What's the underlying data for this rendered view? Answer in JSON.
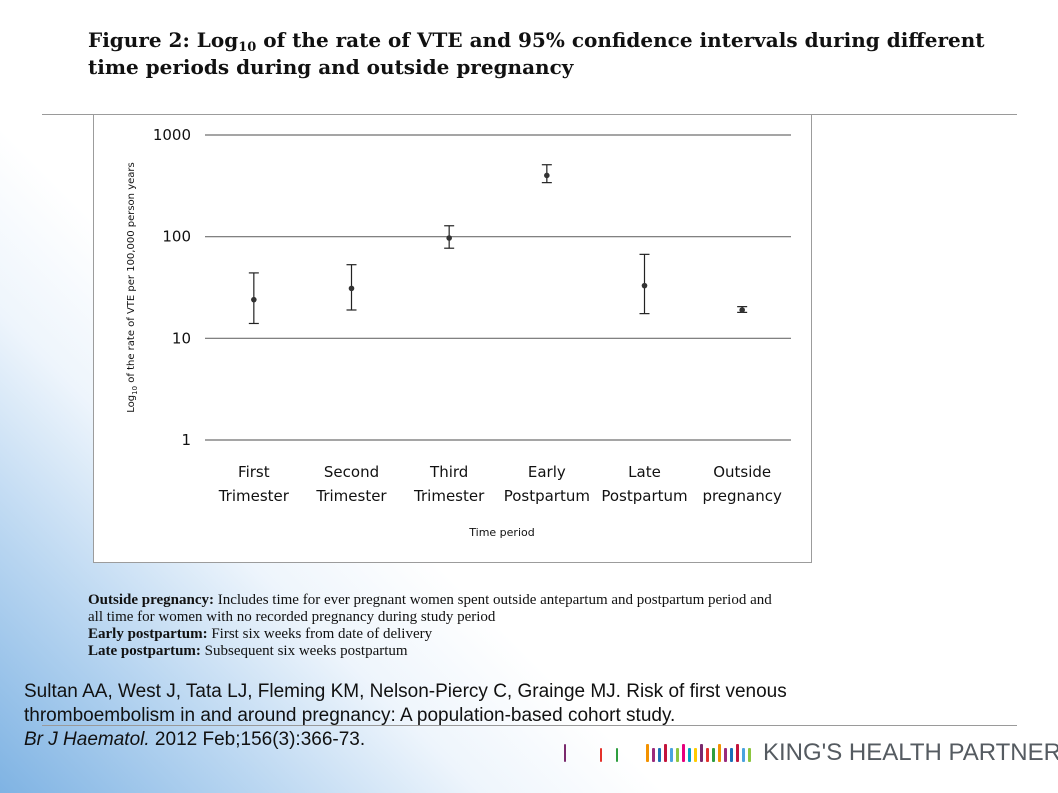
{
  "figure": {
    "title_prefix": "Figure 2: Log",
    "title_sub": "10",
    "title_rest": " of the rate of VTE and 95% confidence intervals during different",
    "title_line2": "time periods during and outside pregnancy"
  },
  "chart_data": {
    "type": "scatter",
    "error_bars": true,
    "y_scale": "log",
    "ylim": [
      1,
      1000
    ],
    "y_ticks": [
      "1",
      "10",
      "100",
      "1000"
    ],
    "y_tick_values": [
      1,
      10,
      100,
      1000
    ],
    "ylabel_prefix": "Log",
    "ylabel_sub": "10",
    "ylabel_rest": " of the rate of VTE per 100,000 person years",
    "xlabel": "Time period",
    "grid": true,
    "categories": [
      [
        "First",
        "Trimester"
      ],
      [
        "Second",
        "Trimester"
      ],
      [
        "Third",
        "Trimester"
      ],
      [
        "Early",
        "Postpartum"
      ],
      [
        "Late",
        "Postpartum"
      ],
      [
        "Outside",
        "pregnancy"
      ]
    ],
    "series": [
      {
        "values": [
          24,
          31,
          97,
          400,
          33,
          19
        ],
        "lower": [
          14,
          19,
          77,
          340,
          17.5,
          18
        ],
        "upper": [
          44,
          53,
          128,
          510,
          67,
          20.5
        ]
      }
    ]
  },
  "notes": [
    {
      "term": "Outside pregnancy:",
      "text": " Includes time for ever pregnant women spent outside antepartum and postpartum period and"
    },
    {
      "term": "",
      "text": "all time for women with no recorded pregnancy during study period"
    },
    {
      "term": "Early postpartum:",
      "text": " First six weeks from date of delivery"
    },
    {
      "term": "Late postpartum:",
      "text": " Subsequent six weeks postpartum"
    }
  ],
  "citation": {
    "line1": "Sultan AA, West J, Tata LJ, Fleming KM, Nelson-Piercy C, Grainge MJ. Risk of first venous",
    "line2": "thromboembolism in and around pregnancy: A population-based  cohort study.",
    "journal": "Br J Haematol.",
    "details": " 2012 Feb;156(3):366-73."
  },
  "logo": {
    "text": "KING'S HEALTH PARTNERS",
    "colors": [
      "#7a2a6d",
      "#e4312b",
      "#2e9e3f",
      "#f39200",
      "#9b2b7c",
      "#1a71b8",
      "#c3143c",
      "#4aa3df",
      "#8cc63f",
      "#e6007e",
      "#00a0c6",
      "#ffcc00"
    ]
  }
}
